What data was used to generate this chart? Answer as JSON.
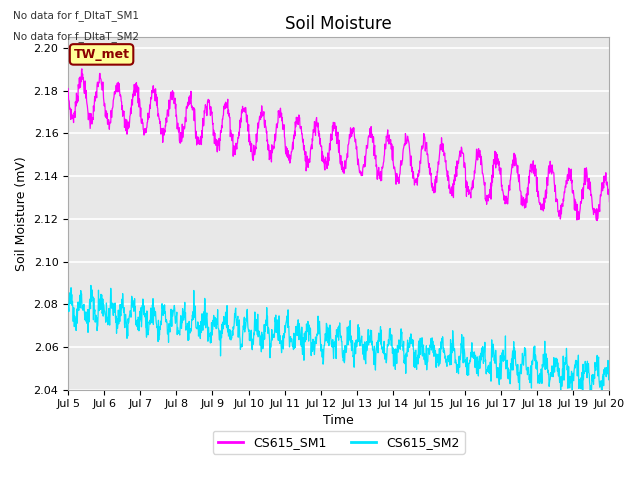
{
  "title": "Soil Moisture",
  "xlabel": "Time",
  "ylabel": "Soil Moisture (mV)",
  "ylim": [
    2.04,
    2.205
  ],
  "yticks": [
    2.04,
    2.06,
    2.08,
    2.1,
    2.12,
    2.14,
    2.16,
    2.18,
    2.2
  ],
  "xtick_labels": [
    "Jul 5",
    "Jul 6",
    "Jul 7",
    "Jul 8",
    "Jul 9",
    "Jul 10",
    "Jul 11",
    "Jul 12",
    "Jul 13",
    "Jul 14",
    "Jul 15",
    "Jul 16",
    "Jul 17",
    "Jul 18",
    "Jul 19",
    "Jul 20"
  ],
  "color_sm1": "#FF00FF",
  "color_sm2": "#00E5FF",
  "legend_labels": [
    "CS615_SM1",
    "CS615_SM2"
  ],
  "no_data_text": [
    "No data for f_DltaT_SM1",
    "No data for f_DltaT_SM2"
  ],
  "tw_met_label": "TW_met",
  "tw_met_bg": "#FFFF99",
  "tw_met_border": "#8B0000",
  "plot_bg": "#E8E8E8",
  "fig_bg": "#FFFFFF",
  "grid_color": "#FFFFFF",
  "title_fontsize": 12,
  "axis_fontsize": 9,
  "tick_fontsize": 8
}
